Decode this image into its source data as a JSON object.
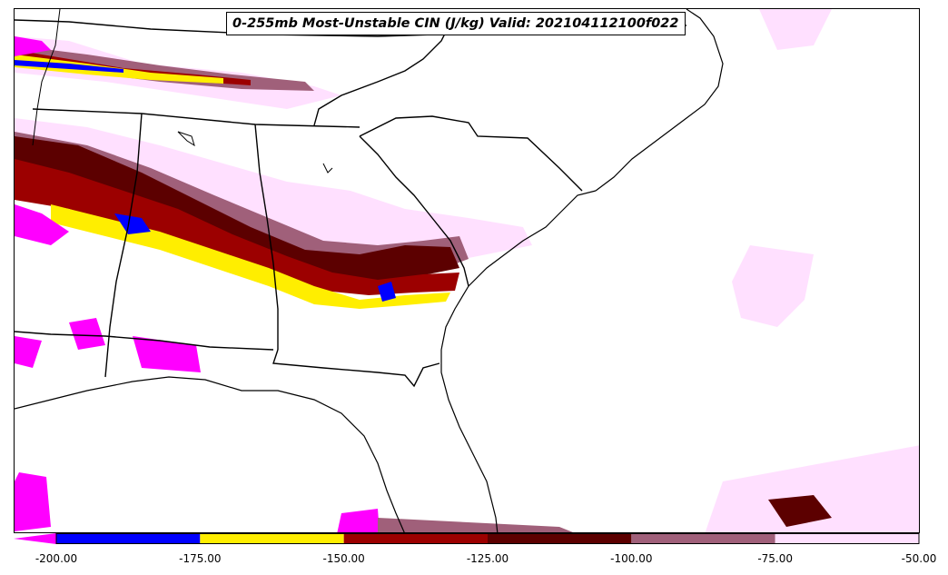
{
  "title": "0-255mb Most-Unstable CIN (J/kg) Valid: 202104112100f022",
  "colorbar": {
    "bins": [
      {
        "from": -200,
        "to": -175,
        "color": "#0000ff"
      },
      {
        "from": -175,
        "to": -150,
        "color": "#ffee00"
      },
      {
        "from": -150,
        "to": -125,
        "color": "#9c0000"
      },
      {
        "from": -125,
        "to": -100,
        "color": "#5c0000"
      },
      {
        "from": -100,
        "to": -75,
        "color": "#a0607a"
      },
      {
        "from": -75,
        "to": -50,
        "color": "#ffe0ff"
      }
    ],
    "under_color": "#ff00ff",
    "tick_labels": [
      "-200.00",
      "-175.00",
      "-150.00",
      "-125.00",
      "-100.00",
      "-75.00",
      "-50.00"
    ]
  },
  "legend_colors": {
    "magenta": "#ff00ff",
    "blue": "#0000ff",
    "yellow": "#ffee00",
    "red": "#9c0000",
    "darkred": "#5c0000",
    "mauve": "#a0607a",
    "pink": "#ffe0ff"
  }
}
